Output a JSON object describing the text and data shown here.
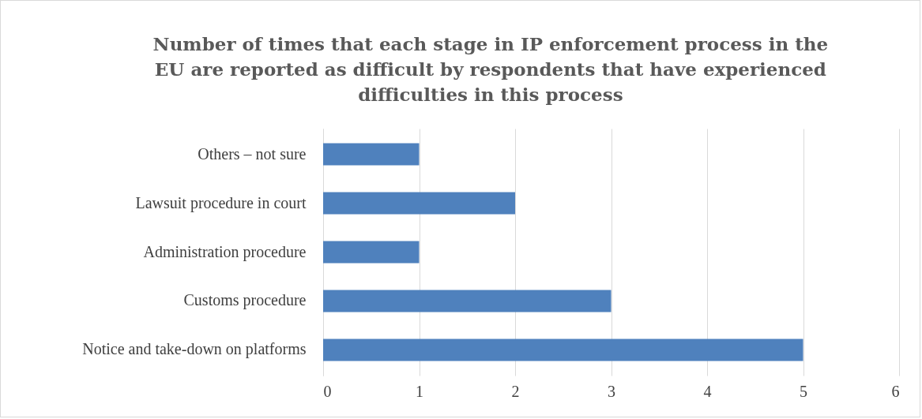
{
  "chart_data": {
    "type": "bar",
    "orientation": "horizontal",
    "title": "Number of times that each stage in IP enforcement process in the EU are reported as difficult by respondents that have experienced difficulties in this process",
    "categories": [
      "Others – not sure",
      "Lawsuit procedure in court",
      "Administration procedure",
      "Customs procedure",
      "Notice and take-down on platforms"
    ],
    "values": [
      1,
      2,
      1,
      3,
      5
    ],
    "color": "#4f81bd",
    "xlim": [
      0,
      6
    ],
    "xticks": [
      0,
      1,
      2,
      3,
      4,
      5,
      6
    ],
    "grid": "x"
  }
}
